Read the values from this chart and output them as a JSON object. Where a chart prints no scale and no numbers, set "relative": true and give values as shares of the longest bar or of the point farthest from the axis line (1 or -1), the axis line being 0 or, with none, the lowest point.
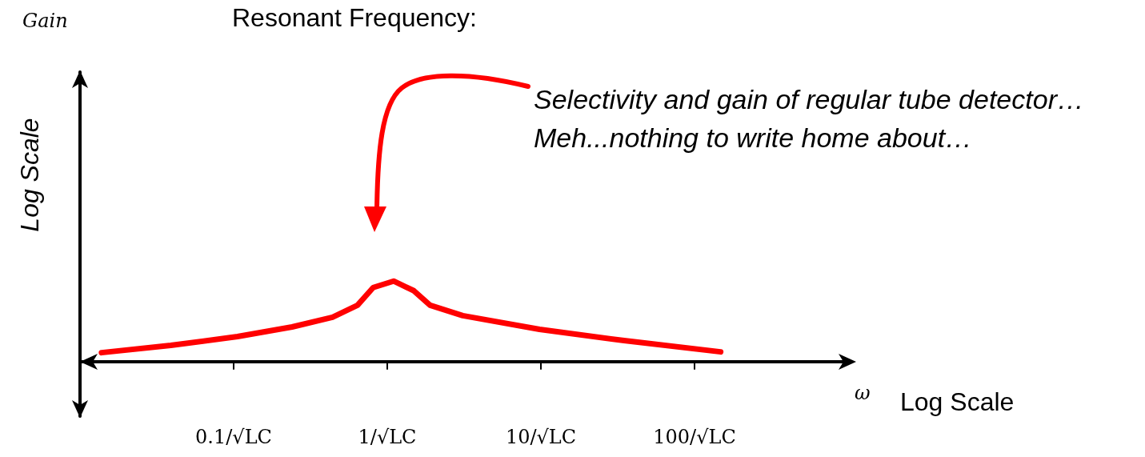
{
  "chart_data": {
    "type": "line",
    "title": "Resonant Frequency:",
    "ylabel": "Log Scale",
    "xlabel": "ω",
    "relative": true,
    "log": "x",
    "xlim": [
      0.01,
      1000
    ],
    "xticks": [
      {
        "value": 0.1,
        "label": "0.1/√LC"
      },
      {
        "value": 1,
        "label": "1/√LC"
      },
      {
        "value": 10,
        "label": "10/√LC"
      },
      {
        "value": 100,
        "label": "100/√LC"
      }
    ],
    "tick_labels": "x",
    "grid": false,
    "marker": "none",
    "line_style": "solid",
    "series": [
      {
        "color": "#ff0000",
        "x": [
          0.0138,
          0.039,
          0.106,
          0.24,
          0.44,
          0.64,
          0.81,
          1.1,
          1.49,
          1.9,
          3.1,
          9.8,
          34.8,
          148
        ],
        "values": [
          0.11,
          0.2,
          0.31,
          0.43,
          0.55,
          0.7,
          0.92,
          1,
          0.88,
          0.7,
          0.57,
          0.4,
          0.26,
          0.12
        ]
      }
    ],
    "annotations": [
      "Gain",
      "Log Scale",
      "Selectivity and gain of regular tube detector…\nMeh...nothing to write home about…"
    ]
  }
}
